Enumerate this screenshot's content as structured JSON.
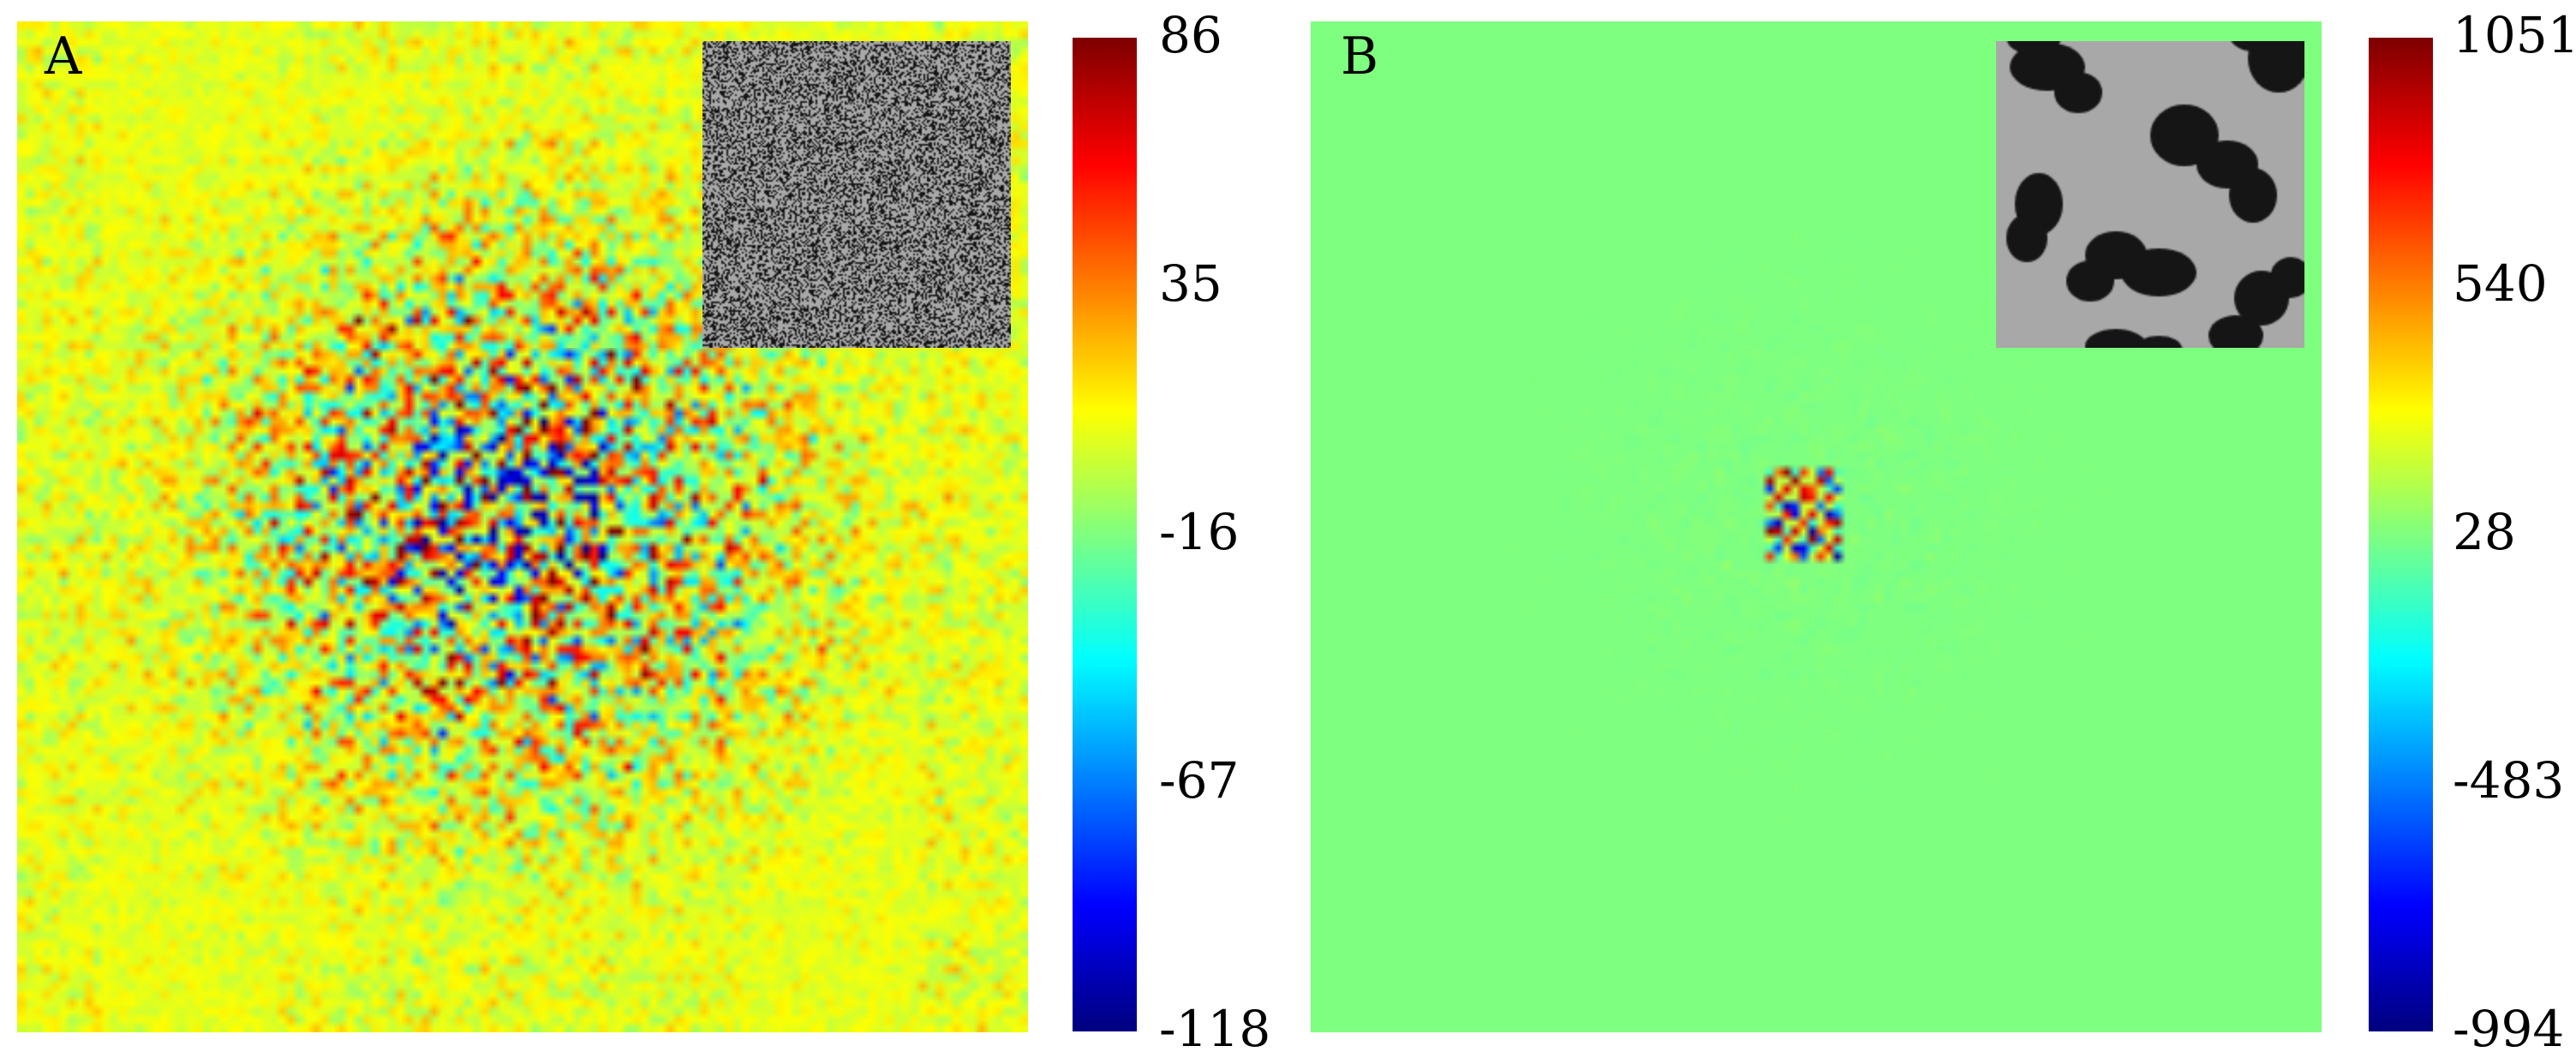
{
  "chart_data": [
    {
      "type": "heatmap",
      "panel_label": "A",
      "title": "",
      "xlabel": "",
      "ylabel": "",
      "colormap": "jet",
      "grid": false,
      "colorbar": {
        "min": -118,
        "max": 86,
        "ticks": [
          86,
          35,
          -16,
          -67,
          -118
        ]
      },
      "background_value": 5,
      "pattern": "noisy",
      "inset": {
        "type": "binary-image",
        "content": "random-noise",
        "colors": [
          "#a8a8a8",
          "#151515"
        ]
      }
    },
    {
      "type": "heatmap",
      "panel_label": "B",
      "title": "",
      "xlabel": "",
      "ylabel": "",
      "colormap": "jet",
      "grid": false,
      "colorbar": {
        "min": -994,
        "max": 1051,
        "ticks": [
          1051,
          540,
          28,
          -483,
          -994
        ]
      },
      "background_value": 28,
      "pattern": "localized",
      "inset": {
        "type": "binary-image",
        "content": "blob-structures",
        "colors": [
          "#a8a8a8",
          "#151515"
        ]
      }
    }
  ]
}
